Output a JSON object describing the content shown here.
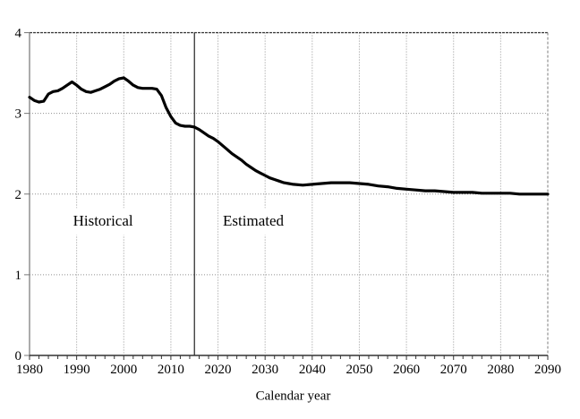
{
  "colors": {
    "background": "#ffffff",
    "line": "#000000",
    "grid": "#909090",
    "axis": "#333333",
    "y_axis": "#808080",
    "right_border": "#999999",
    "divider": "#222222",
    "text": "#000000"
  },
  "chart_data": {
    "type": "line",
    "title": "",
    "xlabel": "Calendar year",
    "ylabel": "",
    "xlim": [
      1980,
      2090
    ],
    "ylim": [
      0,
      4
    ],
    "x_ticks": [
      1980,
      1990,
      2000,
      2010,
      2020,
      2030,
      2040,
      2050,
      2060,
      2070,
      2080,
      2090
    ],
    "y_ticks": [
      0,
      1,
      2,
      3,
      4
    ],
    "x_minor_tick_step": 2,
    "grid": "dotted gridlines at decade years and integer y values",
    "legend_position": "none",
    "divider": {
      "year": 2015,
      "style": "solid vertical line separating historical and estimated data"
    },
    "annotations": [
      {
        "text": "Historical",
        "x": 1995.6,
        "y": 1.66
      },
      {
        "text": "Estimated",
        "x": 2027.5,
        "y": 1.66
      }
    ],
    "series": [
      {
        "name": "Historical",
        "points": [
          [
            1980,
            3.2
          ],
          [
            1981,
            3.16
          ],
          [
            1982,
            3.14
          ],
          [
            1983,
            3.15
          ],
          [
            1984,
            3.24
          ],
          [
            1985,
            3.27
          ],
          [
            1986,
            3.28
          ],
          [
            1987,
            3.31
          ],
          [
            1988,
            3.35
          ],
          [
            1989,
            3.39
          ],
          [
            1990,
            3.35
          ],
          [
            1991,
            3.3
          ],
          [
            1992,
            3.27
          ],
          [
            1993,
            3.26
          ],
          [
            1994,
            3.28
          ],
          [
            1995,
            3.3
          ],
          [
            1996,
            3.33
          ],
          [
            1997,
            3.36
          ],
          [
            1998,
            3.4
          ],
          [
            1999,
            3.43
          ],
          [
            2000,
            3.44
          ],
          [
            2001,
            3.4
          ],
          [
            2002,
            3.35
          ],
          [
            2003,
            3.32
          ],
          [
            2004,
            3.31
          ],
          [
            2005,
            3.31
          ],
          [
            2006,
            3.31
          ],
          [
            2007,
            3.3
          ],
          [
            2008,
            3.22
          ],
          [
            2009,
            3.07
          ],
          [
            2010,
            2.96
          ],
          [
            2011,
            2.88
          ],
          [
            2012,
            2.85
          ],
          [
            2013,
            2.84
          ],
          [
            2014,
            2.84
          ],
          [
            2015,
            2.83
          ]
        ]
      },
      {
        "name": "Estimated",
        "points": [
          [
            2015,
            2.83
          ],
          [
            2016,
            2.8
          ],
          [
            2017,
            2.76
          ],
          [
            2018,
            2.72
          ],
          [
            2019,
            2.69
          ],
          [
            2020,
            2.65
          ],
          [
            2021,
            2.6
          ],
          [
            2022,
            2.55
          ],
          [
            2023,
            2.5
          ],
          [
            2024,
            2.46
          ],
          [
            2025,
            2.42
          ],
          [
            2026,
            2.37
          ],
          [
            2027,
            2.33
          ],
          [
            2028,
            2.29
          ],
          [
            2029,
            2.26
          ],
          [
            2030,
            2.23
          ],
          [
            2031,
            2.2
          ],
          [
            2032,
            2.18
          ],
          [
            2033,
            2.16
          ],
          [
            2034,
            2.14
          ],
          [
            2035,
            2.13
          ],
          [
            2036,
            2.12
          ],
          [
            2038,
            2.11
          ],
          [
            2040,
            2.12
          ],
          [
            2042,
            2.13
          ],
          [
            2044,
            2.14
          ],
          [
            2046,
            2.14
          ],
          [
            2048,
            2.14
          ],
          [
            2050,
            2.13
          ],
          [
            2052,
            2.12
          ],
          [
            2054,
            2.1
          ],
          [
            2056,
            2.09
          ],
          [
            2058,
            2.07
          ],
          [
            2060,
            2.06
          ],
          [
            2062,
            2.05
          ],
          [
            2064,
            2.04
          ],
          [
            2066,
            2.04
          ],
          [
            2068,
            2.03
          ],
          [
            2070,
            2.02
          ],
          [
            2072,
            2.02
          ],
          [
            2074,
            2.02
          ],
          [
            2076,
            2.01
          ],
          [
            2078,
            2.01
          ],
          [
            2080,
            2.01
          ],
          [
            2082,
            2.01
          ],
          [
            2084,
            2.0
          ],
          [
            2086,
            2.0
          ],
          [
            2088,
            2.0
          ],
          [
            2090,
            2.0
          ]
        ]
      }
    ]
  }
}
